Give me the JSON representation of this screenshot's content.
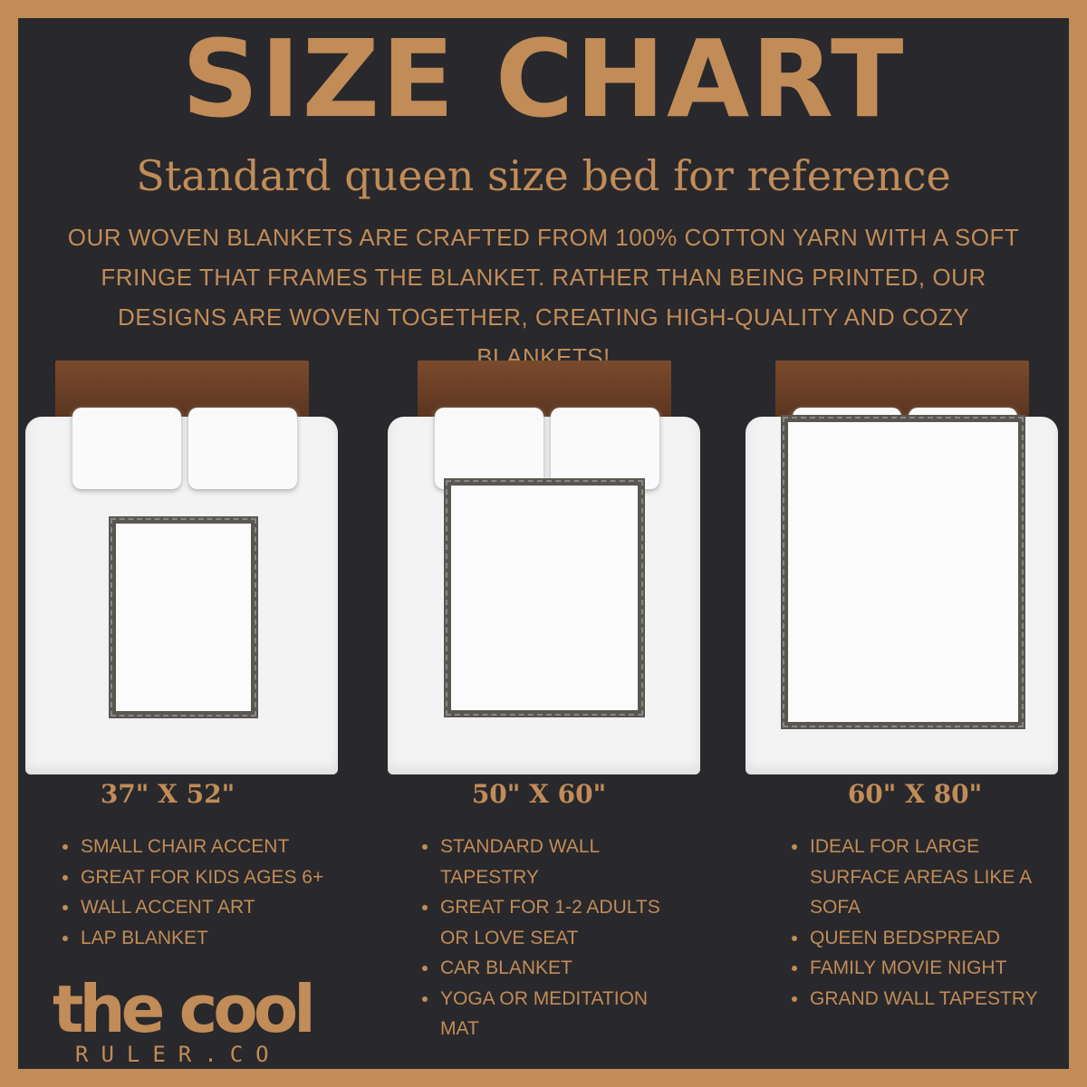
{
  "title": "SIZE CHART",
  "subtitle": "Standard queen size bed for reference",
  "description": "Our woven blankets are crafted from 100% cotton yarn with a soft fringe that frames the blanket. Rather than being printed, our designs are woven together, creating high-quality and cozy blankets!",
  "colors": {
    "accent": "#c18c58",
    "background": "#29282c"
  },
  "sizes": [
    {
      "label": "37\" X 52\"",
      "features": [
        "Small chair accent",
        "Great for kids ages 6+",
        "Wall accent art",
        "Lap blanket"
      ]
    },
    {
      "label": "50\" X 60\"",
      "features": [
        "Standard wall tapestry",
        "Great for 1-2 adults or love seat",
        "Car blanket",
        "Yoga or meditation mat"
      ]
    },
    {
      "label": "60\" X 80\"",
      "features": [
        "Ideal for large surface areas like a sofa",
        "Queen bedspread",
        "Family movie night",
        "Grand wall tapestry"
      ]
    }
  ],
  "logo": {
    "main": "the cool",
    "sub": "RULER.CO"
  }
}
